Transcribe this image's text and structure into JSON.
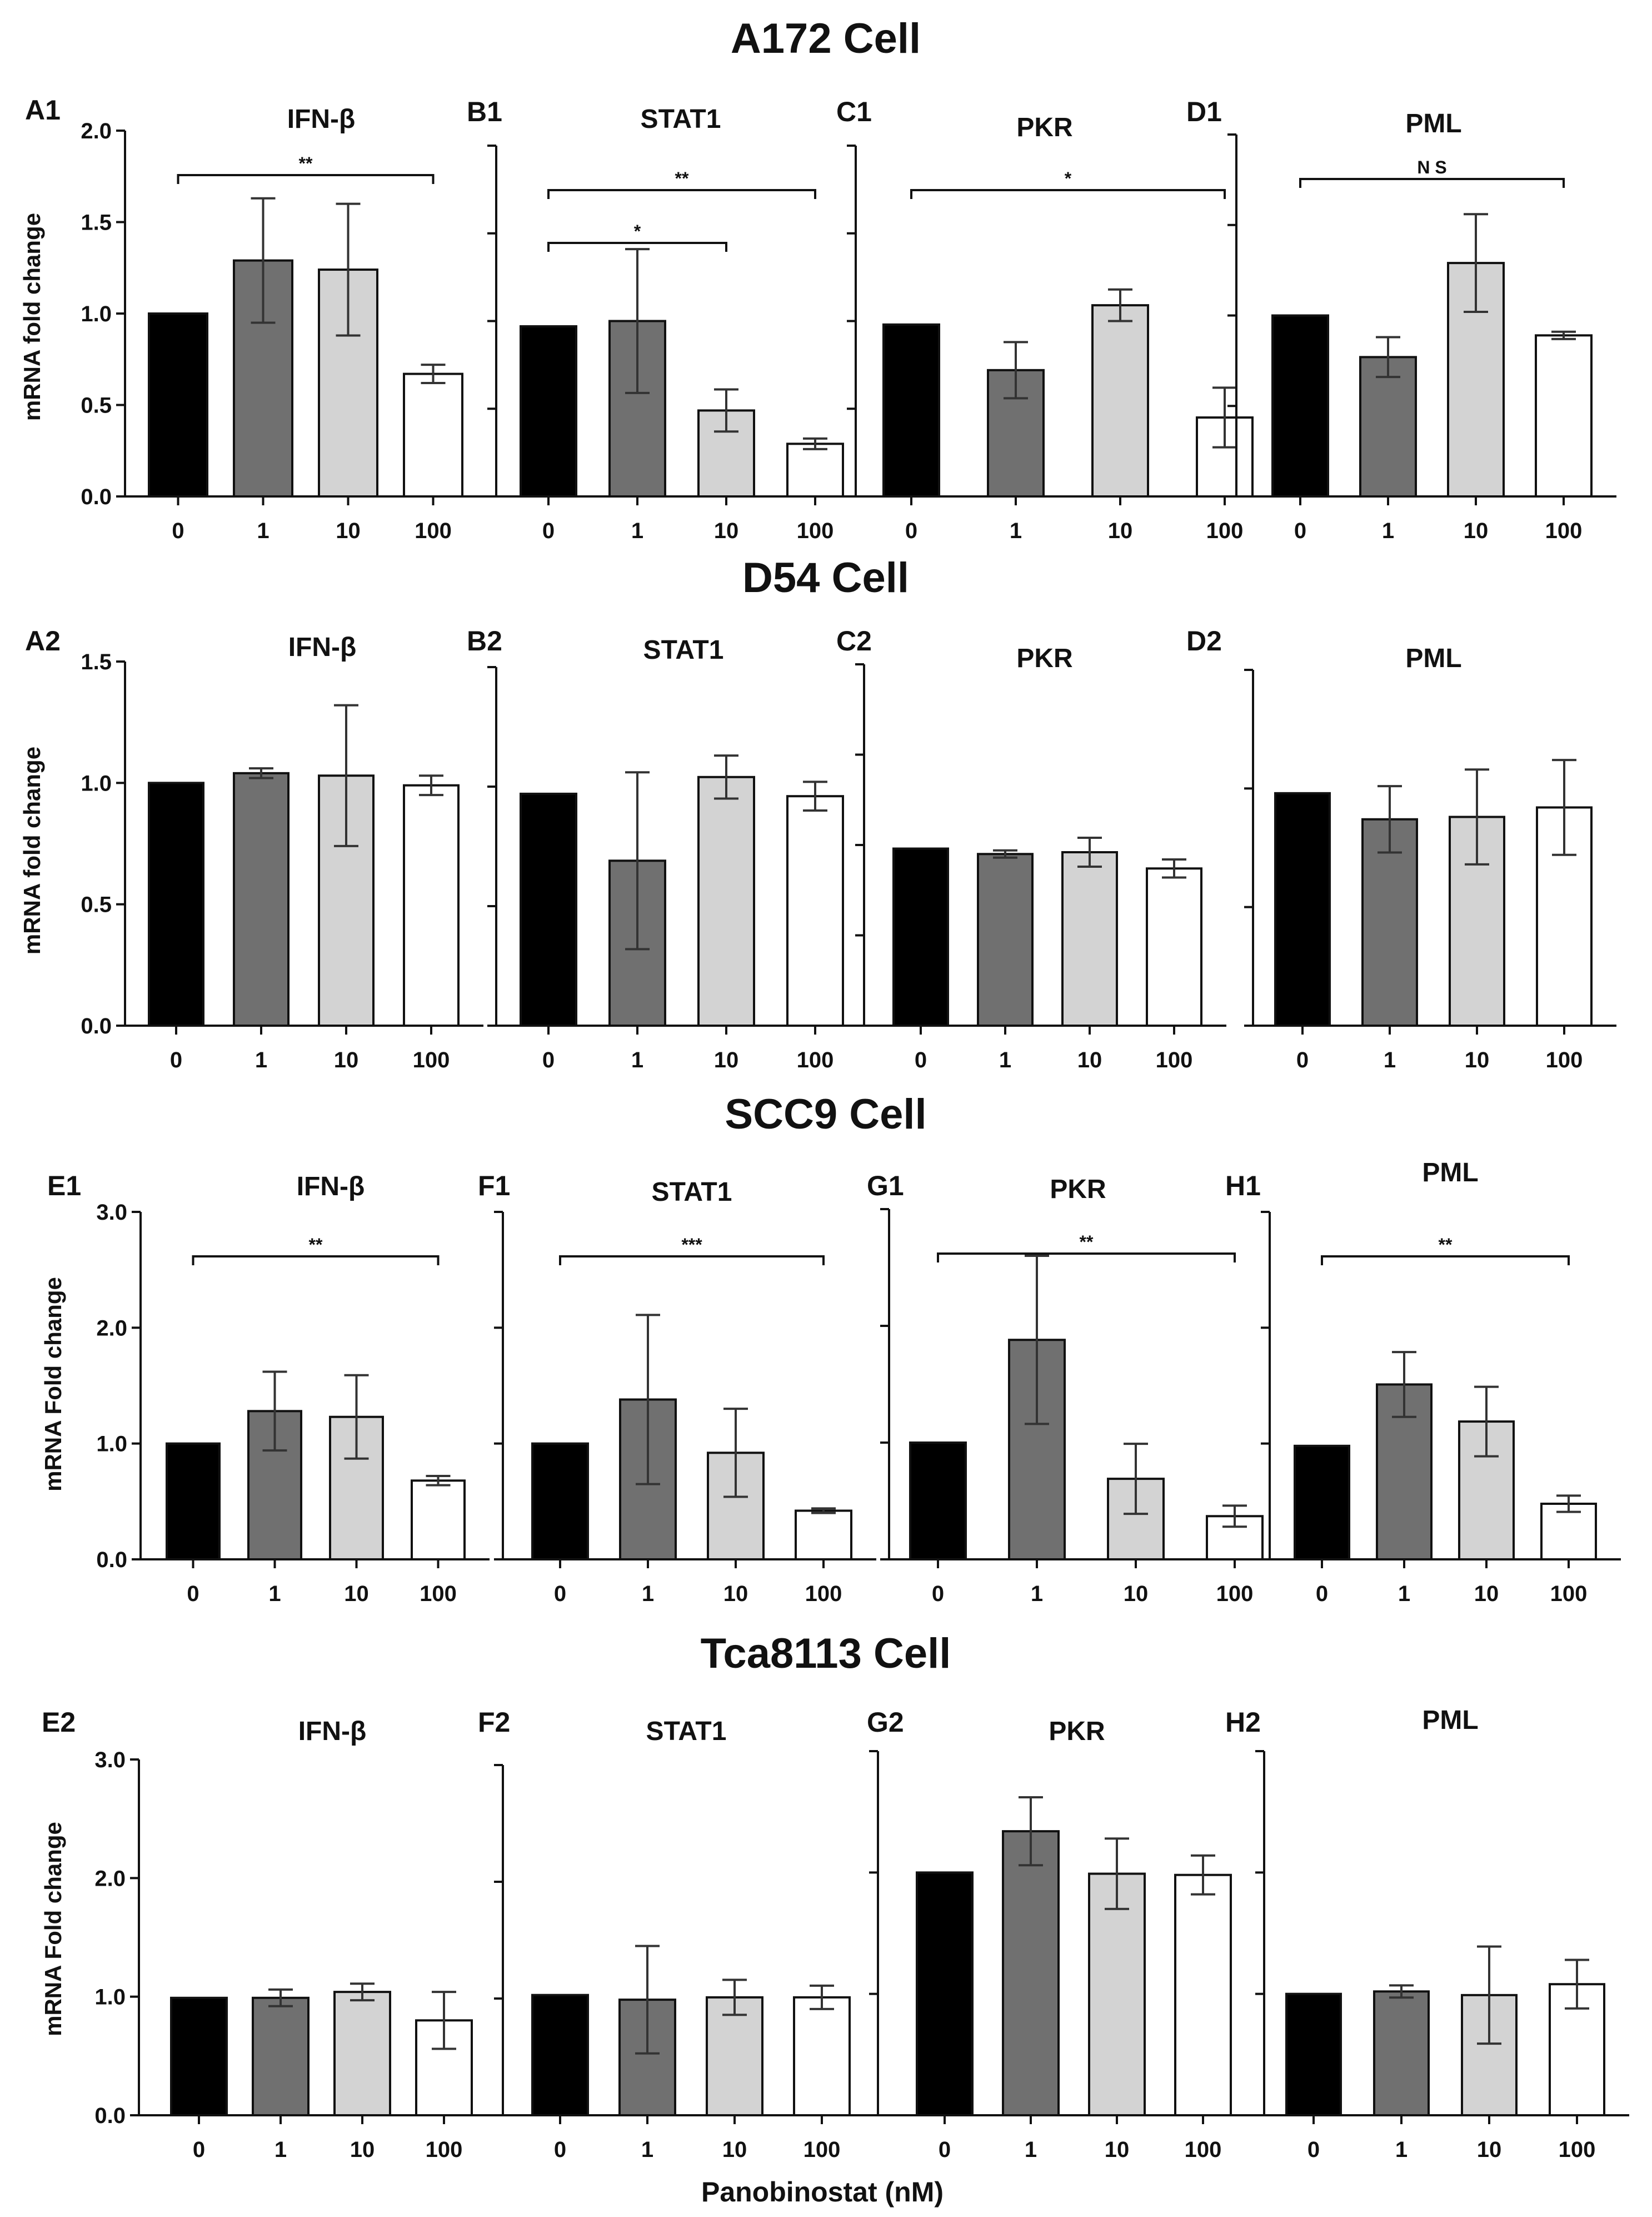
{
  "section_titles": [
    "A172 Cell",
    "D54 Cell",
    "SCC9 Cell",
    "Tca8113 Cell"
  ],
  "x_axis_title": "Panobinostat (nM)",
  "y_axis_titles": [
    "mRNA fold change",
    "mRNA fold change",
    "mRNA Fold change",
    "mRNA Fold change"
  ],
  "bar_colors": [
    "#000000",
    "#707070",
    "#d3d3d3",
    "#ffffff"
  ],
  "chart_data": [
    {
      "type": "bar",
      "panel": "A1",
      "title": "IFN-β",
      "categories": [
        "0",
        "1",
        "10",
        "100"
      ],
      "values": [
        1.0,
        1.29,
        1.24,
        0.67
      ],
      "errors": [
        0,
        0.34,
        0.36,
        0.05
      ],
      "ylim": [
        0,
        2.0
      ],
      "yticks": [
        0,
        0.5,
        1.0,
        1.5,
        2.0
      ],
      "ytick_labels": [
        "0.0",
        "0.5",
        "1.0",
        "1.5",
        "2.0"
      ],
      "significance": [
        {
          "from": 0,
          "to": 3,
          "label": "**"
        }
      ]
    },
    {
      "type": "bar",
      "panel": "B1",
      "title": "STAT1",
      "categories": [
        "0",
        "1",
        "10",
        "100"
      ],
      "values": [
        0.97,
        1.0,
        0.49,
        0.3
      ],
      "errors": [
        0,
        0.41,
        0.12,
        0.03
      ],
      "ylim": [
        0,
        2.0
      ],
      "yticks": [
        0,
        0.5,
        1.0,
        1.5,
        2.0
      ],
      "ytick_labels": [],
      "significance": [
        {
          "from": 0,
          "to": 3,
          "label": "**"
        },
        {
          "from": 0,
          "to": 2,
          "label": "*"
        }
      ]
    },
    {
      "type": "bar",
      "panel": "C1",
      "title": "PKR",
      "categories": [
        "0",
        "1",
        "10",
        "100"
      ],
      "values": [
        0.98,
        0.72,
        1.09,
        0.45
      ],
      "errors": [
        0,
        0.16,
        0.09,
        0.17
      ],
      "ylim": [
        0,
        2.0
      ],
      "yticks": [
        0,
        0.5,
        1.0,
        1.5,
        2.0
      ],
      "ytick_labels": [],
      "significance": [
        {
          "from": 0,
          "to": 3,
          "label": "*"
        }
      ]
    },
    {
      "type": "bar",
      "panel": "D1",
      "title": "PML",
      "categories": [
        "0",
        "1",
        "10",
        "100"
      ],
      "values": [
        1.0,
        0.77,
        1.29,
        0.89
      ],
      "errors": [
        0,
        0.11,
        0.27,
        0.02
      ],
      "ylim": [
        0,
        2.0
      ],
      "yticks": [
        0,
        0.5,
        1.0,
        1.5,
        2.0
      ],
      "ytick_labels": [],
      "significance": [
        {
          "from": 0,
          "to": 3,
          "label": "N S"
        }
      ]
    },
    {
      "type": "bar",
      "panel": "A2",
      "title": "IFN-β",
      "categories": [
        "0",
        "1",
        "10",
        "100"
      ],
      "values": [
        1.0,
        1.04,
        1.03,
        0.99
      ],
      "errors": [
        0,
        0.02,
        0.29,
        0.04
      ],
      "ylim": [
        0,
        1.5
      ],
      "yticks": [
        0,
        0.5,
        1.0,
        1.5
      ],
      "ytick_labels": [
        "0.0",
        "0.5",
        "1.0",
        "1.5"
      ],
      "significance": []
    },
    {
      "type": "bar",
      "panel": "B2",
      "title": "STAT1",
      "categories": [
        "0",
        "1",
        "10",
        "100"
      ],
      "values": [
        0.97,
        0.69,
        1.04,
        0.96
      ],
      "errors": [
        0,
        0.37,
        0.09,
        0.06
      ],
      "ylim": [
        0,
        1.5
      ],
      "yticks": [
        0,
        0.5,
        1.0,
        1.5
      ],
      "ytick_labels": [],
      "significance": []
    },
    {
      "type": "bar",
      "panel": "C2",
      "title": "PKR",
      "categories": [
        "0",
        "1",
        "10",
        "100"
      ],
      "values": [
        0.98,
        0.95,
        0.96,
        0.87
      ],
      "errors": [
        0,
        0.02,
        0.08,
        0.05
      ],
      "ylim": [
        0,
        2.0
      ],
      "yticks": [
        0,
        0.5,
        1.0,
        1.5,
        2.0
      ],
      "ytick_labels": [],
      "significance": []
    },
    {
      "type": "bar",
      "panel": "D2",
      "title": "PML",
      "categories": [
        "0",
        "1",
        "10",
        "100"
      ],
      "values": [
        0.98,
        0.87,
        0.88,
        0.92
      ],
      "errors": [
        0,
        0.14,
        0.2,
        0.2
      ],
      "ylim": [
        0,
        1.5
      ],
      "yticks": [
        0,
        0.5,
        1.0,
        1.5
      ],
      "ytick_labels": [],
      "significance": []
    },
    {
      "type": "bar",
      "panel": "E1",
      "title": "IFN-β",
      "categories": [
        "0",
        "1",
        "10",
        "100"
      ],
      "values": [
        1.0,
        1.28,
        1.23,
        0.68
      ],
      "errors": [
        0,
        0.34,
        0.36,
        0.04
      ],
      "ylim": [
        0,
        3.0
      ],
      "yticks": [
        0,
        1.0,
        2.0,
        3.0
      ],
      "ytick_labels": [
        "0.0",
        "1.0",
        "2.0",
        "3.0"
      ],
      "significance": [
        {
          "from": 0,
          "to": 3,
          "label": "**"
        }
      ]
    },
    {
      "type": "bar",
      "panel": "F1",
      "title": "STAT1",
      "categories": [
        "0",
        "1",
        "10",
        "100"
      ],
      "values": [
        1.0,
        1.38,
        0.92,
        0.42
      ],
      "errors": [
        0,
        0.73,
        0.38,
        0.02
      ],
      "ylim": [
        0,
        3.0
      ],
      "yticks": [
        0,
        1.0,
        2.0,
        3.0
      ],
      "ytick_labels": [],
      "significance": [
        {
          "from": 0,
          "to": 3,
          "label": "***"
        }
      ]
    },
    {
      "type": "bar",
      "panel": "G1",
      "title": "PKR",
      "categories": [
        "0",
        "1",
        "10",
        "100"
      ],
      "values": [
        1.0,
        1.88,
        0.69,
        0.37
      ],
      "errors": [
        0,
        0.72,
        0.3,
        0.09
      ],
      "ylim": [
        0,
        3.0
      ],
      "yticks": [
        0,
        1.0,
        2.0,
        3.0
      ],
      "ytick_labels": [],
      "significance": [
        {
          "from": 0,
          "to": 3,
          "label": "**"
        }
      ]
    },
    {
      "type": "bar",
      "panel": "H1",
      "title": "PML",
      "categories": [
        "0",
        "1",
        "10",
        "100"
      ],
      "values": [
        0.98,
        1.51,
        1.19,
        0.48
      ],
      "errors": [
        0,
        0.28,
        0.3,
        0.07
      ],
      "ylim": [
        0,
        3.0
      ],
      "yticks": [
        0,
        1.0,
        2.0,
        3.0
      ],
      "ytick_labels": [],
      "significance": [
        {
          "from": 0,
          "to": 3,
          "label": "**"
        }
      ]
    },
    {
      "type": "bar",
      "panel": "E2",
      "title": "IFN-β",
      "categories": [
        "0",
        "1",
        "10",
        "100"
      ],
      "values": [
        0.99,
        0.99,
        1.04,
        0.8
      ],
      "errors": [
        0,
        0.07,
        0.07,
        0.24
      ],
      "ylim": [
        0,
        3.0
      ],
      "yticks": [
        0,
        1.0,
        2.0,
        3.0
      ],
      "ytick_labels": [
        "0.0",
        "1.0",
        "2.0",
        "3.0"
      ],
      "significance": []
    },
    {
      "type": "bar",
      "panel": "F2",
      "title": "STAT1",
      "categories": [
        "0",
        "1",
        "10",
        "100"
      ],
      "values": [
        1.03,
        0.99,
        1.01,
        1.01
      ],
      "errors": [
        0,
        0.46,
        0.15,
        0.1
      ],
      "ylim": [
        0,
        3.0
      ],
      "yticks": [
        0,
        1.0,
        2.0,
        3.0
      ],
      "ytick_labels": [],
      "significance": []
    },
    {
      "type": "bar",
      "panel": "G2",
      "title": "PKR",
      "categories": [
        "0",
        "1",
        "10",
        "100"
      ],
      "values": [
        2.0,
        2.34,
        1.99,
        1.98
      ],
      "errors": [
        0,
        0.28,
        0.29,
        0.16
      ],
      "ylim": [
        0,
        3.0
      ],
      "yticks": [
        0,
        1.0,
        2.0,
        3.0
      ],
      "ytick_labels": [],
      "significance": []
    },
    {
      "type": "bar",
      "panel": "H2",
      "title": "PML",
      "categories": [
        "0",
        "1",
        "10",
        "100"
      ],
      "values": [
        1.0,
        1.02,
        0.99,
        1.08
      ],
      "errors": [
        0,
        0.05,
        0.4,
        0.2
      ],
      "ylim": [
        0,
        3.0
      ],
      "yticks": [
        0,
        1.0,
        2.0,
        3.0
      ],
      "ytick_labels": [],
      "significance": []
    }
  ]
}
